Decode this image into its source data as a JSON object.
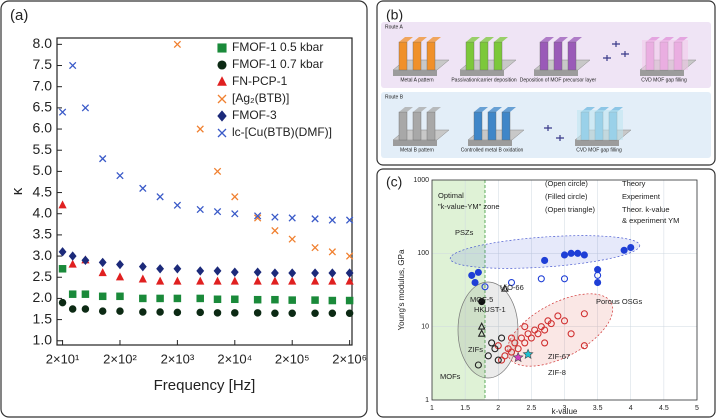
{
  "chart_data": [
    {
      "label": "(a)",
      "type": "scatter",
      "xlabel": "Frequency [Hz]",
      "ylabel": "κ",
      "log_x": true,
      "xlim": [
        16,
        2200000
      ],
      "ylim": [
        0.9,
        8.15
      ],
      "xticks": [
        {
          "value": 20,
          "label": "2×10¹"
        },
        {
          "value": 200,
          "label": "2×10²"
        },
        {
          "value": 2000,
          "label": "2×10³"
        },
        {
          "value": 20000,
          "label": "2×10⁴"
        },
        {
          "value": 200000,
          "label": "2×10⁵"
        },
        {
          "value": 2000000,
          "label": "2×10⁶"
        }
      ],
      "yticks": [
        {
          "value": 1,
          "label": "1.0"
        },
        1.5,
        {
          "value": 2,
          "label": "2.0"
        },
        2.5,
        {
          "value": 3,
          "label": "3.0"
        },
        3.5,
        {
          "value": 4,
          "label": "4.0"
        },
        4.5,
        {
          "value": 5,
          "label": "5.0"
        },
        5.5,
        {
          "value": 6,
          "label": "6.0"
        },
        6.5,
        {
          "value": 7,
          "label": "7.0"
        },
        7.5,
        {
          "value": 8,
          "label": "8.0"
        }
      ],
      "legend": "upper right",
      "x": [
        20,
        30,
        50,
        100,
        200,
        500,
        1000,
        2000,
        5000,
        10000,
        20000,
        50000,
        100000,
        200000,
        500000,
        1000000,
        2000000
      ],
      "series": [
        {
          "name": "FMOF-1 0.5 kbar",
          "color": "#1a8a3a",
          "marker": "square",
          "values": [
            2.7,
            2.1,
            2.1,
            2.05,
            2.05,
            2.0,
            2.0,
            2.0,
            2.0,
            1.98,
            1.98,
            1.97,
            1.97,
            1.96,
            1.96,
            1.95,
            1.95
          ]
        },
        {
          "name": "FMOF-1 0.7 kbar",
          "color": "#0c2a14",
          "marker": "circle",
          "values": [
            1.9,
            1.75,
            1.75,
            1.7,
            1.7,
            1.68,
            1.68,
            1.67,
            1.67,
            1.66,
            1.66,
            1.66,
            1.65,
            1.65,
            1.65,
            1.65,
            1.65
          ]
        },
        {
          "name": "FN-PCP-1",
          "color": "#e02020",
          "marker": "triangle",
          "values": [
            4.2,
            2.8,
            2.9,
            2.6,
            2.5,
            2.45,
            2.4,
            2.4,
            2.4,
            2.4,
            2.4,
            2.4,
            2.4,
            2.4,
            2.4,
            2.4,
            2.4
          ]
        },
        {
          "name": "[Ag₂(BTB)]",
          "color": "#f08030",
          "marker": "x",
          "values": [
            null,
            null,
            null,
            null,
            null,
            null,
            null,
            8.0,
            6.0,
            5.0,
            4.4,
            3.9,
            3.6,
            3.4,
            3.2,
            3.1,
            3.0
          ]
        },
        {
          "name": "FMOF-3",
          "color": "#1c2a7a",
          "marker": "diamond",
          "values": [
            3.1,
            3.0,
            2.9,
            2.85,
            2.8,
            2.75,
            2.7,
            2.7,
            2.65,
            2.65,
            2.62,
            2.62,
            2.6,
            2.6,
            2.6,
            2.6,
            2.6
          ]
        },
        {
          "name": "lc-[Cu(BTB)(DMF)]",
          "color": "#3a5ac8",
          "marker": "x",
          "values": [
            6.4,
            7.5,
            6.5,
            5.3,
            4.9,
            4.6,
            4.4,
            4.2,
            4.1,
            4.05,
            4.0,
            3.95,
            3.92,
            3.9,
            3.88,
            3.85,
            3.85
          ]
        }
      ]
    },
    {
      "label": "(c)",
      "type": "scatter",
      "xlabel": "k-value",
      "ylabel": "Young's modulus, GPa",
      "log_y": true,
      "grid": true,
      "xlim": [
        1,
        5
      ],
      "ylim": [
        1,
        1000
      ],
      "xticks": [
        1,
        1.5,
        2,
        2.5,
        3,
        3.5,
        4,
        4.5,
        5
      ],
      "yticks": [
        1,
        10,
        100,
        1000
      ],
      "annotations": [
        "Optimal",
        "\"k-value-YM\" zone",
        "(Open circle)",
        "Theory",
        "(Filled circle)",
        "Experiment",
        "(Open triangle)",
        "Theor. k-value",
        "& experiment YM",
        "PSZs",
        "UiO-66",
        "MOF-5",
        "HKUST-1",
        "ZIFs",
        "MOFs",
        "Porous OSGs",
        "ZIF-67",
        "ZIF-8"
      ],
      "series": [
        {
          "color": "#1f3fd6",
          "marker": "circle",
          "filled": true,
          "x": [
            1.6,
            1.65,
            1.7,
            2.7,
            3.0,
            3.1,
            3.2,
            3.3,
            3.5,
            3.5,
            3.9,
            4.0
          ],
          "values": [
            50,
            40,
            55,
            80,
            95,
            100,
            100,
            95,
            60,
            40,
            110,
            120
          ]
        },
        {
          "color": "#1f3fd6",
          "marker": "circle",
          "filled": false,
          "x": [
            1.8,
            2.2,
            2.65,
            3.0,
            3.5
          ],
          "values": [
            35,
            40,
            45,
            45,
            50
          ]
        },
        {
          "color": "#d03030",
          "marker": "circle",
          "filled": false,
          "x": [
            2.05,
            2.1,
            2.15,
            2.2,
            2.25,
            2.3,
            2.35,
            2.4,
            2.45,
            2.5,
            2.55,
            2.6,
            2.65,
            2.7,
            2.75,
            2.8,
            2.9,
            3.0,
            3.1,
            3.3,
            3.3,
            2.2,
            2.4,
            2.0,
            2.7
          ],
          "values": [
            3.5,
            4,
            5,
            4.5,
            6,
            5,
            7,
            6,
            8,
            7,
            9,
            8,
            10,
            9,
            12,
            11,
            14,
            12,
            8,
            15,
            5.5,
            7,
            10,
            5.5,
            6
          ]
        },
        {
          "color": "#222222",
          "marker": "circle",
          "filled": false,
          "x": [
            1.7,
            1.85,
            1.95,
            2.0,
            1.9,
            2.05
          ],
          "values": [
            3,
            4,
            5,
            3.5,
            6,
            7
          ]
        },
        {
          "color": "#111111",
          "marker": "circle",
          "filled": true,
          "x": [
            1.75
          ],
          "values": [
            22
          ]
        },
        {
          "color": "#222222",
          "marker": "triangle",
          "filled": false,
          "x": [
            2.1,
            1.75,
            1.75
          ],
          "values": [
            33,
            10,
            8
          ]
        },
        {
          "color": "#20c0d0",
          "marker": "star",
          "filled": true,
          "x": [
            2.45
          ],
          "values": [
            4.2
          ]
        },
        {
          "color": "#d040c0",
          "marker": "star",
          "filled": true,
          "x": [
            2.3
          ],
          "values": [
            3.8
          ]
        }
      ]
    }
  ],
  "diagram": {
    "label": "(b)",
    "routes": [
      {
        "name": "Route A",
        "steps": [
          "Metal A pattern",
          "Passivation/carrier deposition",
          "Deposition of MOF precursor layer",
          "CVD MOF gap filling"
        ]
      },
      {
        "name": "Route B",
        "steps": [
          "Metal B pattern",
          "Controlled metal B oxidation",
          "CVD MOF gap filling"
        ]
      }
    ]
  }
}
